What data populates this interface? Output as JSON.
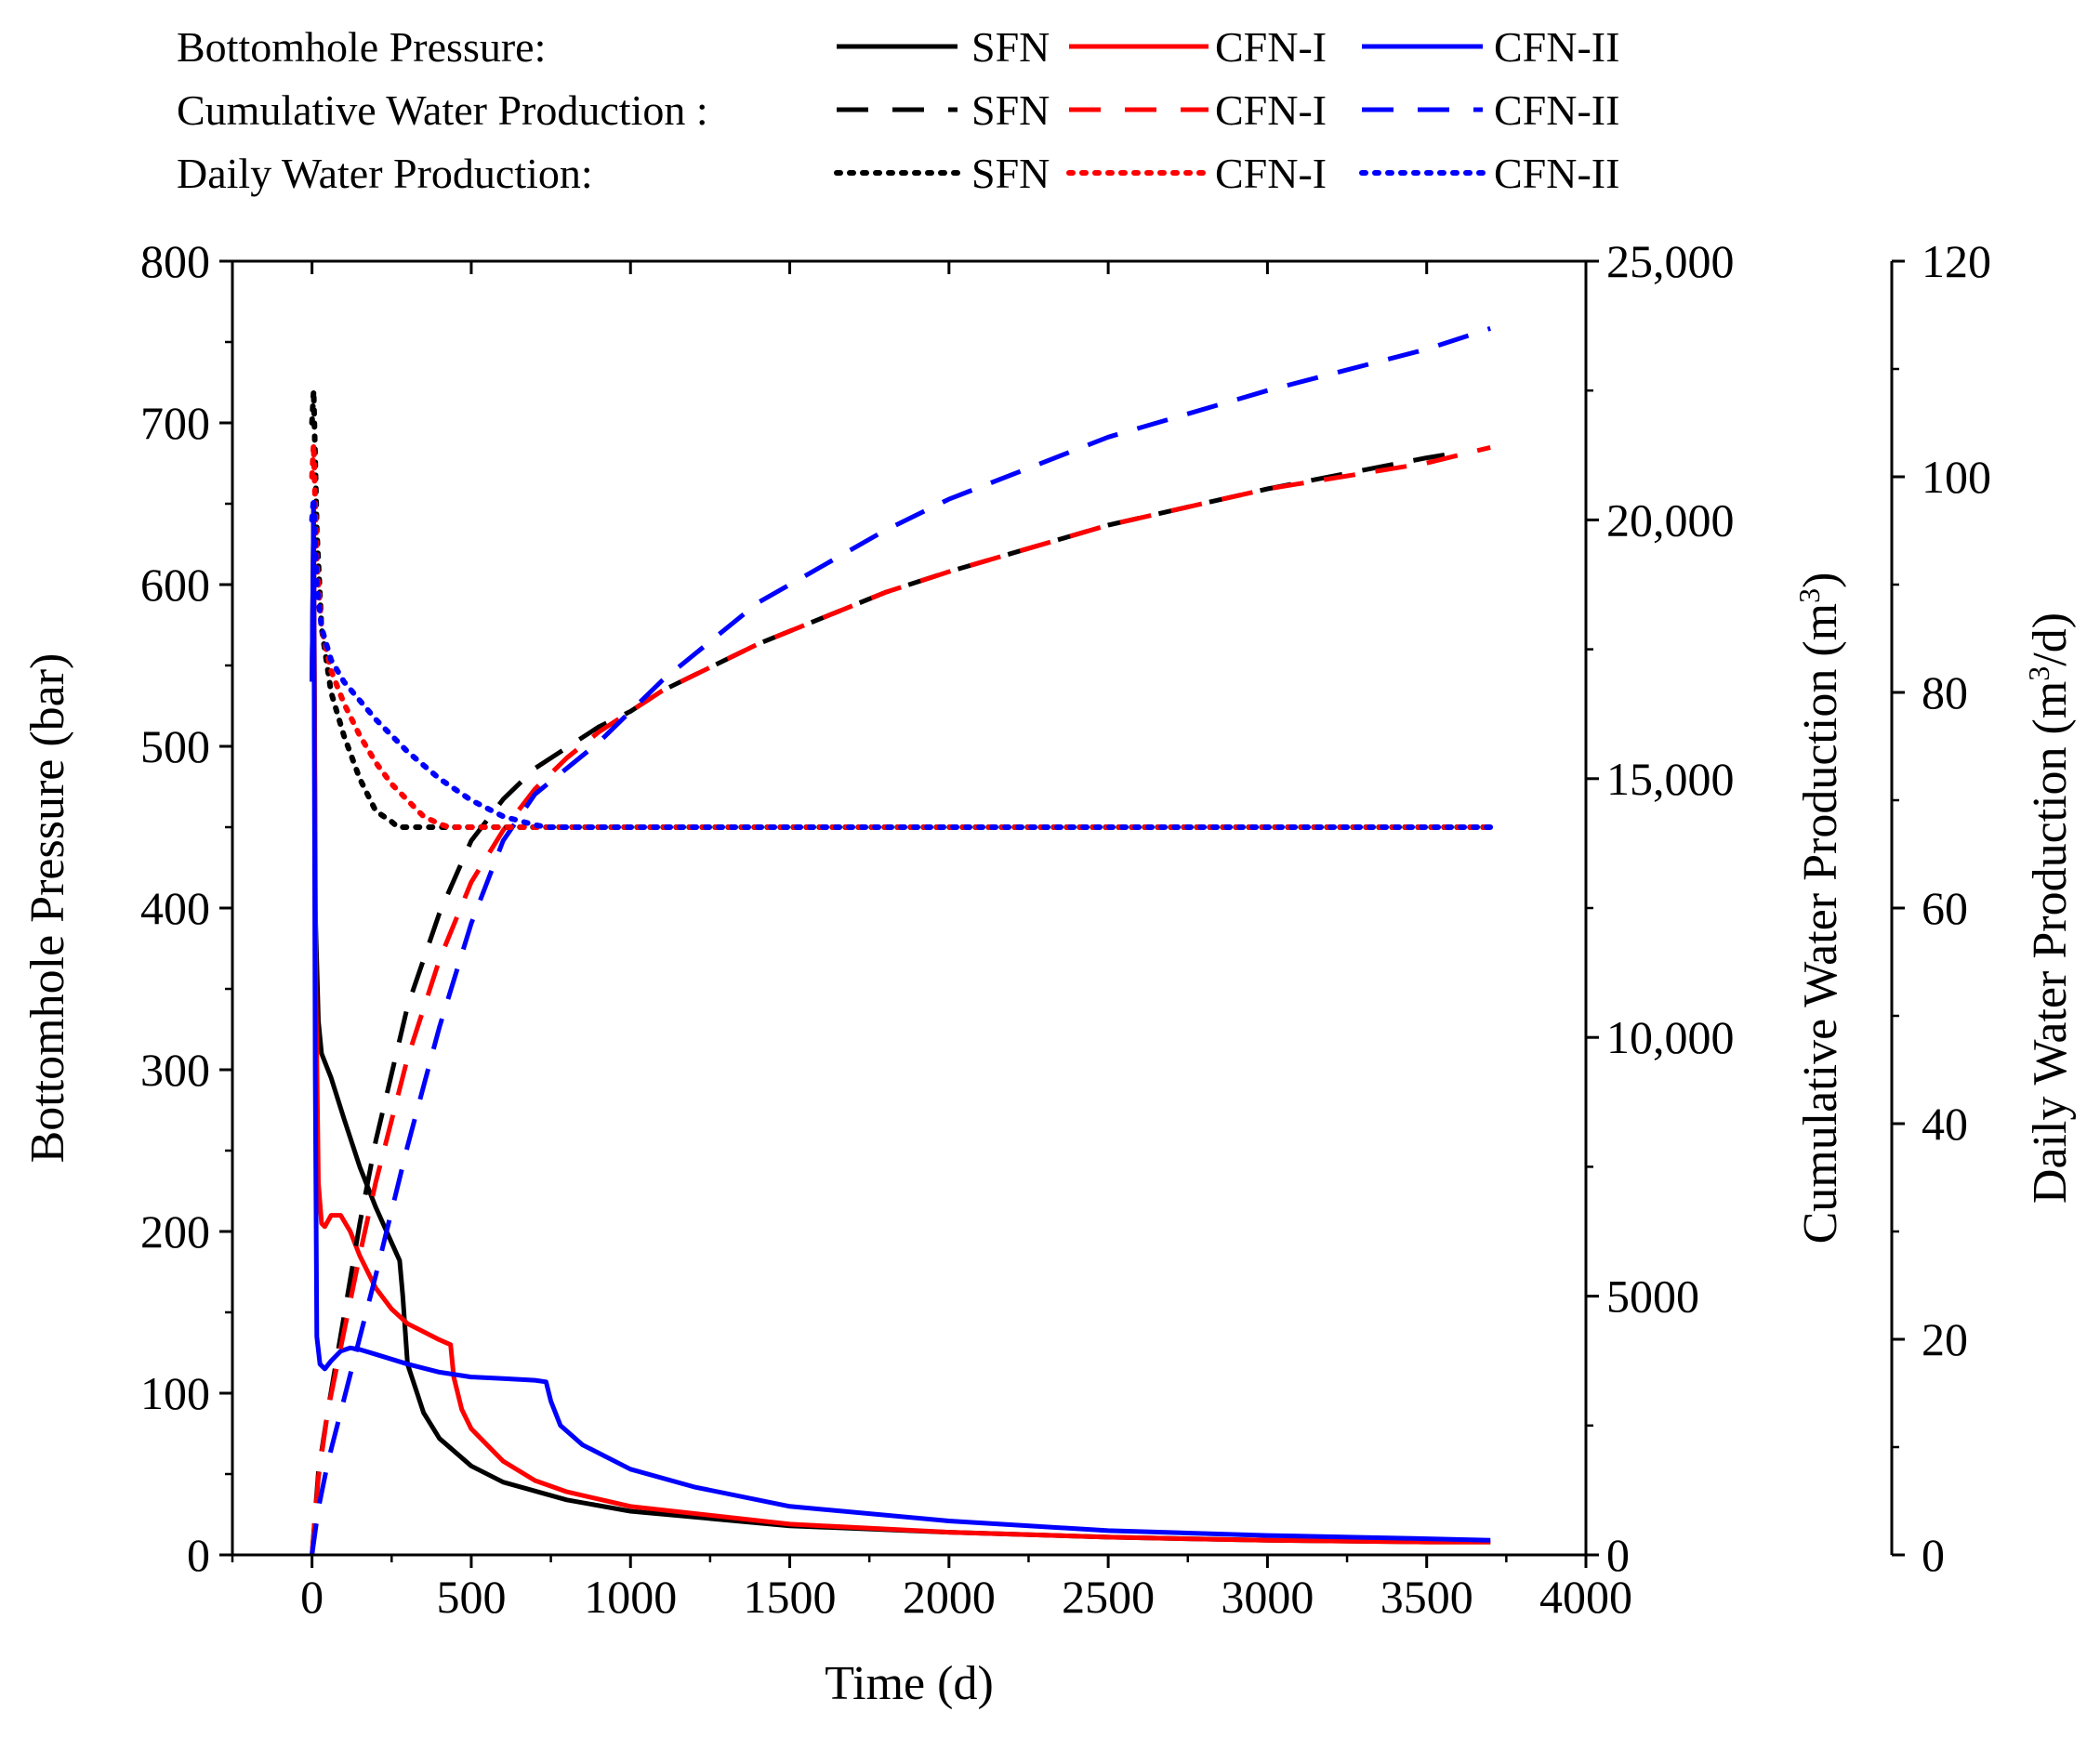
{
  "legend": {
    "groups": [
      {
        "label": "Bottomhole Pressure:",
        "style": "solid"
      },
      {
        "label": "Cumulative Water Production :",
        "style": "dashed"
      },
      {
        "label": "Daily Water Production:",
        "style": "dotted"
      }
    ],
    "cases": [
      "SFN",
      "CFN-I",
      "CFN-II"
    ]
  },
  "axes": {
    "x": {
      "label": "Time (d)",
      "range": [
        -250,
        4000
      ],
      "ticks": [
        "0",
        "500",
        "1000",
        "1500",
        "2000",
        "2500",
        "3000",
        "3500",
        "4000"
      ]
    },
    "y_left": {
      "label": "Bottomhole Pressure (bar)",
      "range": [
        0,
        800
      ],
      "ticks": [
        "0",
        "100",
        "200",
        "300",
        "400",
        "500",
        "600",
        "700",
        "800"
      ]
    },
    "y_right1": {
      "label_main": "Cumulative Water Production (m",
      "label_sup": "3",
      "label_end": ")",
      "range": [
        0,
        25000
      ],
      "ticks": [
        "0",
        "5000",
        "10,000",
        "15,000",
        "20,000",
        "25,000"
      ]
    },
    "y_right2": {
      "label_main": "Daily Water Production (m",
      "label_sup": "3",
      "label_end": "/d)",
      "range": [
        0,
        120
      ],
      "ticks": [
        "0",
        "20",
        "40",
        "60",
        "80",
        "100",
        "120"
      ]
    }
  },
  "colors": {
    "SFN": "#000000",
    "CFN-I": "#ff0000",
    "CFN-II": "#0000ff"
  },
  "chart_data": {
    "type": "line",
    "xlabel": "Time (d)",
    "grid": false,
    "series": [
      {
        "name": "SFN",
        "group": "Bottomhole Pressure",
        "axis": "y_left",
        "style": "solid",
        "x": [
          0,
          5,
          10,
          20,
          30,
          60,
          100,
          150,
          200,
          250,
          275,
          285,
          300,
          350,
          400,
          500,
          600,
          800,
          1000,
          1500,
          2000,
          2500,
          3000,
          3500,
          3700
        ],
        "y": [
          540,
          650,
          400,
          330,
          310,
          295,
          270,
          240,
          215,
          193,
          182,
          160,
          118,
          88,
          72,
          55,
          45,
          34,
          27,
          18,
          14,
          11,
          9,
          8,
          8
        ]
      },
      {
        "name": "CFN-I",
        "group": "Bottomhole Pressure",
        "axis": "y_left",
        "style": "solid",
        "x": [
          0,
          5,
          12,
          20,
          30,
          40,
          60,
          90,
          120,
          150,
          200,
          250,
          300,
          350,
          400,
          435,
          445,
          470,
          500,
          600,
          700,
          800,
          1000,
          1500,
          2000,
          2500,
          3000,
          3500,
          3700
        ],
        "y": [
          540,
          650,
          350,
          230,
          205,
          203,
          210,
          210,
          200,
          185,
          165,
          152,
          143,
          138,
          133,
          130,
          110,
          90,
          78,
          58,
          46,
          39,
          30,
          19,
          14,
          11,
          9,
          8,
          8
        ]
      },
      {
        "name": "CFN-II",
        "group": "Bottomhole Pressure",
        "axis": "y_left",
        "style": "solid",
        "x": [
          0,
          5,
          10,
          15,
          25,
          40,
          60,
          90,
          120,
          150,
          200,
          300,
          400,
          500,
          600,
          700,
          735,
          750,
          780,
          850,
          1000,
          1200,
          1500,
          2000,
          2500,
          3000,
          3500,
          3700
        ],
        "y": [
          540,
          650,
          300,
          135,
          118,
          115,
          120,
          126,
          128,
          127,
          124,
          118,
          113,
          110,
          109,
          108,
          107,
          95,
          80,
          68,
          53,
          42,
          30,
          21,
          15,
          12,
          10,
          9
        ]
      },
      {
        "name": "SFN",
        "group": "Cumulative Water Production",
        "axis": "y_right1",
        "style": "dashed",
        "x": [
          0,
          20,
          50,
          100,
          150,
          200,
          300,
          400,
          500,
          600,
          700,
          800,
          900,
          1000,
          1100,
          1200,
          1400,
          1600,
          1800,
          2000,
          2500,
          3000,
          3500,
          3600
        ],
        "y": [
          0,
          1600,
          2800,
          4600,
          6400,
          8000,
          10600,
          12400,
          13800,
          14600,
          15200,
          15600,
          16000,
          16300,
          16700,
          17000,
          17600,
          18100,
          18600,
          19000,
          19900,
          20600,
          21200,
          21300
        ]
      },
      {
        "name": "CFN-I",
        "group": "Cumulative Water Production",
        "axis": "y_right1",
        "style": "dashed",
        "x": [
          0,
          20,
          50,
          100,
          150,
          200,
          300,
          400,
          500,
          600,
          700,
          800,
          900,
          1000,
          1100,
          1200,
          1400,
          1600,
          1800,
          2000,
          2500,
          3000,
          3500,
          3700
        ],
        "y": [
          0,
          1500,
          2800,
          4300,
          5800,
          7200,
          9600,
          11500,
          13000,
          14000,
          14800,
          15400,
          15900,
          16300,
          16700,
          17000,
          17600,
          18100,
          18600,
          19000,
          19900,
          20600,
          21100,
          21400
        ]
      },
      {
        "name": "CFN-II",
        "group": "Cumulative Water Production",
        "axis": "y_right1",
        "style": "dashed",
        "x": [
          0,
          20,
          50,
          100,
          150,
          200,
          300,
          400,
          500,
          600,
          700,
          800,
          900,
          1000,
          1100,
          1200,
          1400,
          1600,
          1800,
          2000,
          2500,
          3000,
          3500,
          3700
        ],
        "y": [
          0,
          900,
          1800,
          3000,
          4200,
          5400,
          7900,
          10200,
          12200,
          13800,
          14700,
          15200,
          15700,
          16300,
          16900,
          17400,
          18400,
          19100,
          19800,
          20400,
          21600,
          22500,
          23300,
          23700
        ]
      },
      {
        "name": "SFN",
        "group": "Daily Water Production",
        "axis": "y_right2",
        "style": "dotted",
        "x": [
          0,
          5,
          15,
          30,
          60,
          100,
          150,
          200,
          250,
          270,
          400,
          1000,
          2000,
          3000,
          3700
        ],
        "y": [
          105,
          108,
          95,
          86,
          80,
          76,
          72,
          69,
          68,
          67.5,
          67.5,
          67.5,
          67.5,
          67.5,
          67.5
        ]
      },
      {
        "name": "CFN-I",
        "group": "Daily Water Production",
        "axis": "y_right2",
        "style": "dotted",
        "x": [
          0,
          5,
          15,
          30,
          60,
          100,
          150,
          200,
          250,
          300,
          350,
          400,
          430,
          1000,
          2000,
          3000,
          3700
        ],
        "y": [
          100,
          103,
          92,
          86,
          82,
          79,
          76,
          73.5,
          71.5,
          70,
          68.5,
          67.8,
          67.5,
          67.5,
          67.5,
          67.5,
          67.5
        ]
      },
      {
        "name": "CFN-II",
        "group": "Daily Water Production",
        "axis": "y_right2",
        "style": "dotted",
        "x": [
          0,
          5,
          15,
          30,
          60,
          100,
          200,
          300,
          400,
          500,
          600,
          700,
          740,
          1000,
          2000,
          3000,
          3700
        ],
        "y": [
          96,
          98,
          90,
          86,
          83,
          81,
          77.5,
          74.5,
          72,
          70,
          68.5,
          67.7,
          67.5,
          67.5,
          67.5,
          67.5,
          67.5
        ]
      }
    ]
  }
}
